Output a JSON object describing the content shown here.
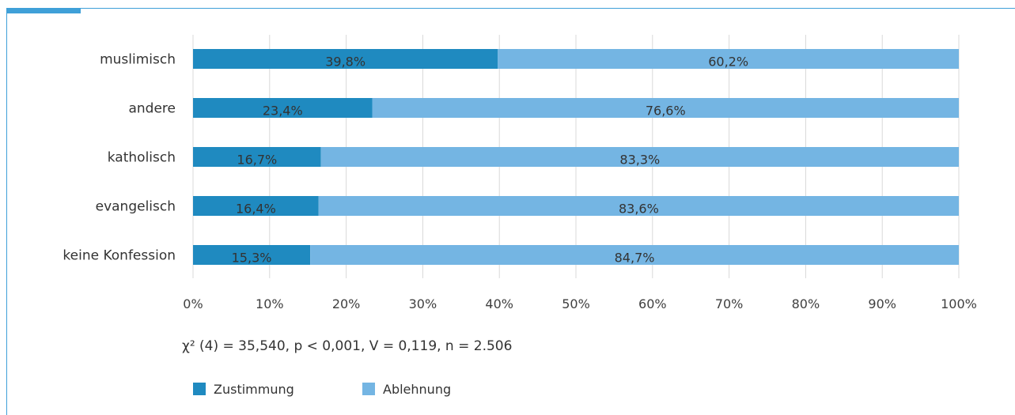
{
  "chart_data": {
    "type": "bar",
    "orientation": "horizontal",
    "stacked": true,
    "categories": [
      "muslimisch",
      "andere",
      "katholisch",
      "evangelisch",
      "keine Konfession"
    ],
    "series": [
      {
        "name": "Zustimmung",
        "color": "#1f8ac0",
        "values": [
          39.8,
          23.4,
          16.7,
          16.4,
          15.3
        ],
        "labels": [
          "39,8%",
          "23,4%",
          "16,7%",
          "16,4%",
          "15,3%"
        ]
      },
      {
        "name": "Ablehnung",
        "color": "#74b5e3",
        "values": [
          60.2,
          76.6,
          83.3,
          83.6,
          84.7
        ],
        "labels": [
          "60,2%",
          "76,6%",
          "83,3%",
          "83,6%",
          "84,7%"
        ]
      }
    ],
    "xlim": [
      0,
      100
    ],
    "xticks": [
      0,
      10,
      20,
      30,
      40,
      50,
      60,
      70,
      80,
      90,
      100
    ],
    "xtick_labels": [
      "0%",
      "10%",
      "20%",
      "30%",
      "40%",
      "50%",
      "60%",
      "70%",
      "80%",
      "90%",
      "100%"
    ],
    "grid": "vertical",
    "legend_position": "bottom-left"
  },
  "stats_text": "χ² (4) = 35,540, p < 0,001, V = 0,119, n = 2.506"
}
